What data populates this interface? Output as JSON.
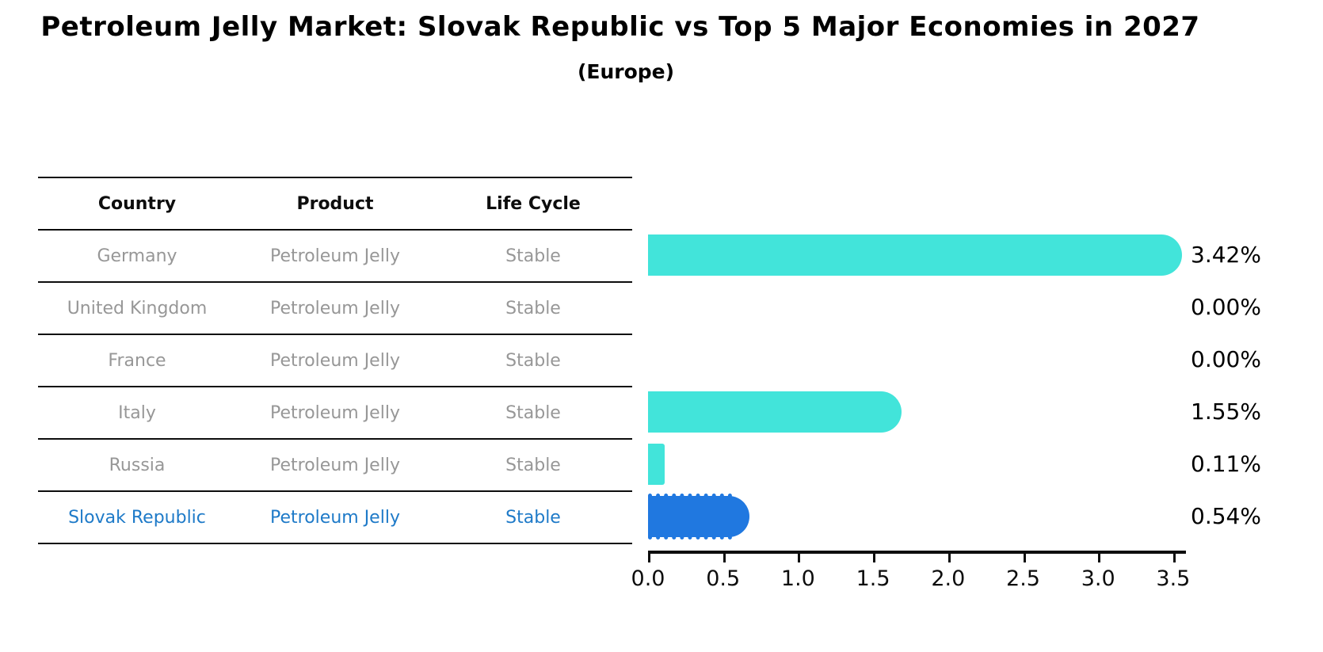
{
  "title": "Petroleum Jelly Market: Slovak Republic vs Top 5 Major Economies in 2027",
  "subtitle": "(Europe)",
  "table": {
    "headers": {
      "country": "Country",
      "product": "Product",
      "life_cycle": "Life Cycle"
    },
    "rows": [
      {
        "country": "Germany",
        "product": "Petroleum Jelly",
        "life_cycle": "Stable"
      },
      {
        "country": "United Kingdom",
        "product": "Petroleum Jelly",
        "life_cycle": "Stable"
      },
      {
        "country": "France",
        "product": "Petroleum Jelly",
        "life_cycle": "Stable"
      },
      {
        "country": "Italy",
        "product": "Petroleum Jelly",
        "life_cycle": "Stable"
      },
      {
        "country": "Russia",
        "product": "Petroleum Jelly",
        "life_cycle": "Stable"
      },
      {
        "country": "Slovak Republic",
        "product": "Petroleum Jelly",
        "life_cycle": "Stable"
      }
    ]
  },
  "chart_data": {
    "type": "bar",
    "orientation": "horizontal",
    "title": "Petroleum Jelly Market: Slovak Republic vs Top 5 Major Economies in 2027 (Europe)",
    "categories": [
      "Germany",
      "United Kingdom",
      "France",
      "Italy",
      "Russia",
      "Slovak Republic"
    ],
    "values": [
      3.42,
      0.0,
      0.0,
      1.55,
      0.11,
      0.54
    ],
    "value_labels": [
      "3.42%",
      "0.00%",
      "0.00%",
      "1.55%",
      "0.11%",
      "0.54%"
    ],
    "xlim": [
      0,
      3.5
    ],
    "xticks": [
      "0.0",
      "0.5",
      "1.0",
      "1.5",
      "2.0",
      "2.5",
      "3.0",
      "3.5"
    ],
    "grid": "off",
    "legend": "none",
    "highlight_index": 5,
    "bar_color": "#42e4da",
    "highlight_color": "#2078e0"
  },
  "colors": {
    "row_text": "#979797",
    "highlight_text": "#1e7ac8",
    "header_text": "#0d0d0d",
    "axis": "#0d0d0d"
  }
}
